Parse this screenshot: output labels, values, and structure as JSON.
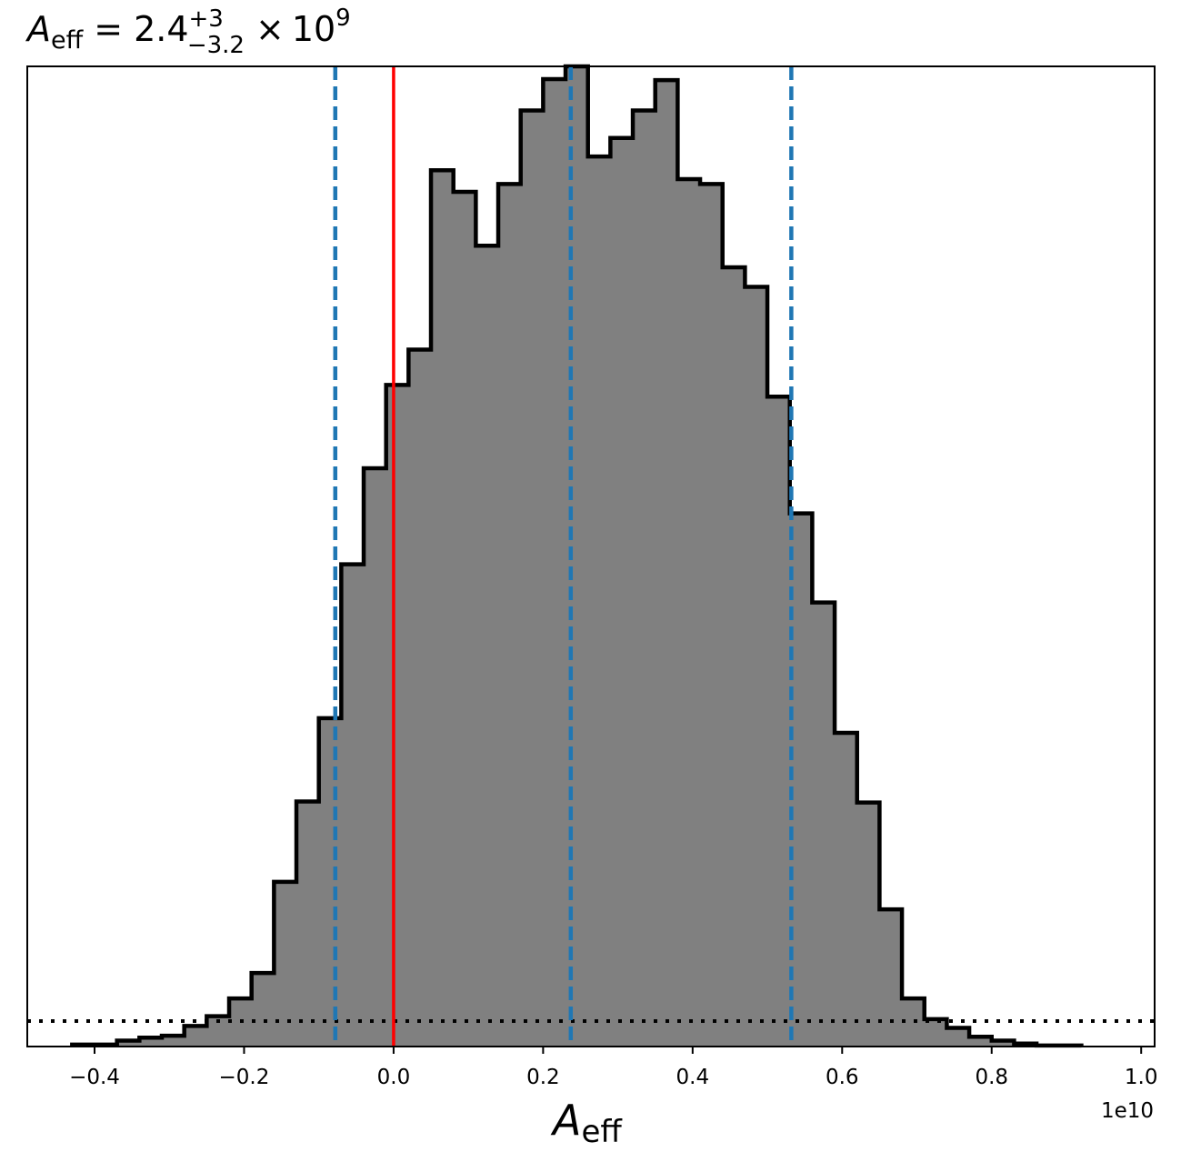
{
  "chart_data": {
    "type": "histogram",
    "title": {
      "symbol": "A",
      "symbol_sub": "eff",
      "equals": "=",
      "value": "2.4",
      "upper": "+3",
      "lower": "−3.2",
      "times": "×",
      "base": "10",
      "exponent": "9"
    },
    "xlabel": {
      "symbol": "A",
      "sub": "eff"
    },
    "offset_label": "1e10",
    "xlim": [
      -0.49,
      1.018
    ],
    "ylim": [
      0,
      1.0
    ],
    "xticks": [
      {
        "value": -0.4,
        "label": "−0.4"
      },
      {
        "value": -0.2,
        "label": "−0.2"
      },
      {
        "value": 0.0,
        "label": "0.0"
      },
      {
        "value": 0.2,
        "label": "0.2"
      },
      {
        "value": 0.4,
        "label": "0.4"
      },
      {
        "value": 0.6,
        "label": "0.6"
      },
      {
        "value": 0.8,
        "label": "0.8"
      },
      {
        "value": 1.0,
        "label": "1.0"
      }
    ],
    "bin_edges": [
      -0.43,
      -0.4,
      -0.37,
      -0.34,
      -0.31,
      -0.28,
      -0.25,
      -0.22,
      -0.19,
      -0.16,
      -0.13,
      -0.1,
      -0.07,
      -0.04,
      -0.01,
      0.02,
      0.05,
      0.08,
      0.11,
      0.14,
      0.17,
      0.2,
      0.23,
      0.26,
      0.29,
      0.32,
      0.35,
      0.38,
      0.41,
      0.44,
      0.47,
      0.5,
      0.53,
      0.56,
      0.59,
      0.62,
      0.65,
      0.68,
      0.71,
      0.74,
      0.77,
      0.8,
      0.83,
      0.86,
      0.89,
      0.92
    ],
    "counts": [
      0.002,
      0.002,
      0.006,
      0.009,
      0.011,
      0.021,
      0.031,
      0.049,
      0.075,
      0.168,
      0.25,
      0.335,
      0.492,
      0.59,
      0.675,
      0.711,
      0.894,
      0.872,
      0.817,
      0.88,
      0.955,
      0.987,
      1.0,
      0.908,
      0.927,
      0.955,
      0.986,
      0.885,
      0.88,
      0.795,
      0.775,
      0.663,
      0.544,
      0.453,
      0.32,
      0.249,
      0.14,
      0.049,
      0.028,
      0.019,
      0.01,
      0.006,
      0.003,
      0.001,
      0.001
    ],
    "fill_color": "#808080",
    "edge_color": "#000000",
    "lines": {
      "red": {
        "x": 0.0,
        "color": "#ff0000"
      },
      "blue_dashed": {
        "x": [
          -0.078,
          0.237,
          0.532
        ],
        "color": "#1f77b4"
      },
      "dotted_baseline": {
        "y": 0.026,
        "color": "#000000"
      }
    }
  }
}
